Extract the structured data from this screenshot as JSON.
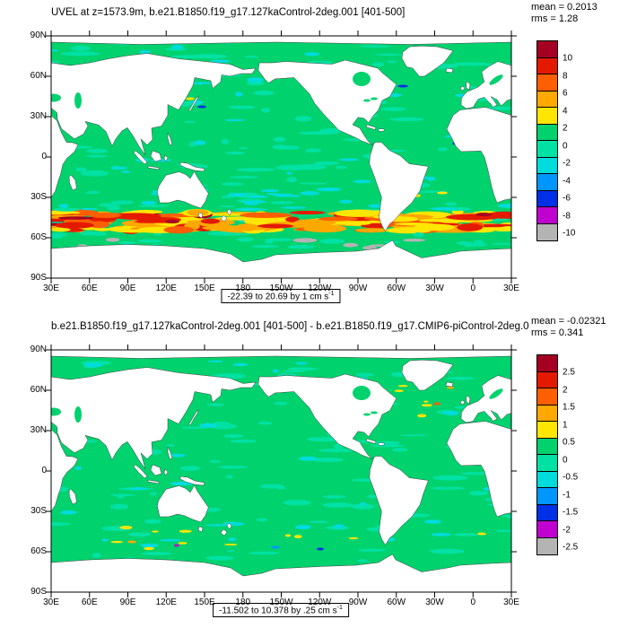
{
  "panels": [
    {
      "title": "UVEL at z=1573.9m, b.e21.B1850.f19_g17.127kaControl-2deg.001 [401-500]",
      "mean": "mean = 0.2013",
      "rms": "rms = 1.28",
      "range_label": "-22.39 to 20.69 by 1 cm s",
      "range_sup": "-1",
      "colorbar_labels": [
        "10",
        "8",
        "6",
        "4",
        "2",
        "0",
        "-2",
        "-4",
        "-6",
        "-8",
        "-10"
      ]
    },
    {
      "title": "b.e21.B1850.f19_g17.127kaControl-2deg.001 [401-500] - b.e21.B1850.f19_g17.CMIP6-piControl-2deg.0",
      "mean": "mean = -0.02321",
      "rms": "rms = 0.341",
      "range_label": "-11.502 to 10.378 by .25 cm s",
      "range_sup": "-1",
      "colorbar_labels": [
        "2.5",
        "2",
        "1.5",
        "1",
        "0.5",
        "0",
        "-0.5",
        "-1",
        "-1.5",
        "-2",
        "-2.5"
      ]
    }
  ],
  "axes": {
    "lat_labels": [
      "90N",
      "60N",
      "30N",
      "0",
      "30S",
      "60S",
      "90S"
    ],
    "lon_labels": [
      "30E",
      "60E",
      "90E",
      "120E",
      "150E",
      "180",
      "150W",
      "120W",
      "90W",
      "60W",
      "30W",
      "0",
      "30E"
    ]
  },
  "colors": {
    "palette": [
      "#a50021",
      "#e31a00",
      "#ff5f00",
      "#ffa800",
      "#ffe600",
      "#00d26e",
      "#00e2a4",
      "#00dcdc",
      "#0096ff",
      "#0030e6",
      "#bf00cf",
      "#b4b4b4"
    ],
    "ocean": "#00d26e",
    "land": "#ffffff"
  },
  "chart_data": [
    {
      "type": "heatmap",
      "subtype": "global-map-filled-contour",
      "variable": "UVEL",
      "title": "UVEL at z=1573.9m, b.e21.B1850.f19_g17.127kaControl-2deg.001 [401-500]",
      "mean": 0.2013,
      "rms": 1.28,
      "field_min": -22.39,
      "field_max": 20.69,
      "contour_interval": "1 cm s-1",
      "range_caption": "-22.39 to 20.69 by 1 cm s-1",
      "colorbar_levels": [
        10,
        8,
        6,
        4,
        2,
        0,
        -2,
        -4,
        -6,
        -8,
        -10
      ],
      "colorbar_colors": [
        "#a50021",
        "#e31a00",
        "#ff5f00",
        "#ffa800",
        "#ffe600",
        "#00d26e",
        "#00e2a4",
        "#00dcdc",
        "#0096ff",
        "#0030e6",
        "#bf00cf",
        "#b4b4b4"
      ],
      "x_ticks": [
        "30E",
        "60E",
        "90E",
        "120E",
        "150E",
        "180",
        "150W",
        "120W",
        "90W",
        "60W",
        "30W",
        "0",
        "30E"
      ],
      "y_ticks": [
        "90N",
        "60N",
        "30N",
        "0",
        "30S",
        "60S",
        "90S"
      ],
      "legend_position": "right",
      "visual_notes": "Ocean mostly 0 to 2 (green) with scattered -2 to 0 (aquamarine/cyan); strong yellow-orange-red (2 to 10+) circumpolar band near 40-60S; land masked white"
    },
    {
      "type": "heatmap",
      "subtype": "global-map-filled-contour",
      "variable": "UVEL difference",
      "title": "b.e21.B1850.f19_g17.127kaControl-2deg.001 [401-500] - b.e21.B1850.f19_g17.CMIP6-piControl-2deg.0",
      "mean": -0.02321,
      "rms": 0.341,
      "field_min": -11.502,
      "field_max": 10.378,
      "contour_interval": ".25 cm s-1",
      "range_caption": "-11.502 to 10.378 by .25 cm s-1",
      "colorbar_levels": [
        2.5,
        2,
        1.5,
        1,
        0.5,
        0,
        -0.5,
        -1,
        -1.5,
        -2,
        -2.5
      ],
      "colorbar_colors": [
        "#a50021",
        "#e31a00",
        "#ff5f00",
        "#ffa800",
        "#ffe600",
        "#00d26e",
        "#00e2a4",
        "#00dcdc",
        "#0096ff",
        "#0030e6",
        "#bf00cf",
        "#b4b4b4"
      ],
      "x_ticks": [
        "30E",
        "60E",
        "90E",
        "120E",
        "150E",
        "180",
        "150W",
        "120W",
        "90W",
        "60W",
        "30W",
        "0",
        "30E"
      ],
      "y_ticks": [
        "90N",
        "60N",
        "30N",
        "0",
        "30S",
        "60S",
        "90S"
      ],
      "legend_position": "right",
      "visual_notes": "Mostly near-zero (green/aquamarine) differences with small yellow/blue/magenta anomalies near the Southern Ocean and North Atlantic"
    }
  ]
}
